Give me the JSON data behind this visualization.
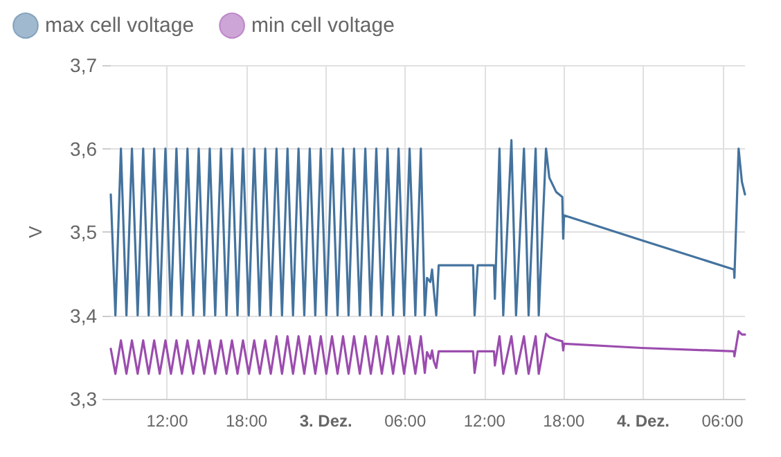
{
  "chart_data": {
    "type": "line",
    "ylabel": "V",
    "legend": "top left",
    "grid": true,
    "marker": "none",
    "line_style": "solid",
    "xlim": [
      "--12-02T07:44",
      "--12-04T07:42"
    ],
    "ylim": [
      3.3,
      3.7
    ],
    "xticks": [
      {
        "value": "--12-02T12:00",
        "label": "12:00"
      },
      {
        "value": "--12-02T18:00",
        "label": "18:00"
      },
      {
        "value": "--12-03T00:00",
        "label": "3. Dez."
      },
      {
        "value": "--12-03T06:00",
        "label": "06:00"
      },
      {
        "value": "--12-03T12:00",
        "label": "12:00"
      },
      {
        "value": "--12-03T18:00",
        "label": "18:00"
      },
      {
        "value": "--12-04T00:00",
        "label": "4. Dez."
      },
      {
        "value": "--12-04T06:00",
        "label": "06:00"
      }
    ],
    "yticks": [
      {
        "value": 3.3,
        "label": "3,3"
      },
      {
        "value": 3.4,
        "label": "3,4"
      },
      {
        "value": 3.5,
        "label": "3,5"
      },
      {
        "value": 3.6,
        "label": "3,6"
      },
      {
        "value": 3.7,
        "label": "3,7"
      }
    ],
    "x": [
      "--12-02T07:44",
      "--12-02T08:05",
      "--12-02T08:30",
      "--12-02T08:55",
      "--12-02T09:20",
      "--12-02T09:46",
      "--12-02T10:11",
      "--12-02T10:36",
      "--12-02T11:01",
      "--12-02T11:26",
      "--12-02T11:52",
      "--12-02T12:17",
      "--12-02T12:42",
      "--12-02T13:07",
      "--12-02T13:32",
      "--12-02T13:58",
      "--12-02T14:23",
      "--12-02T14:48",
      "--12-02T15:13",
      "--12-02T15:38",
      "--12-02T16:04",
      "--12-02T16:29",
      "--12-02T16:54",
      "--12-02T17:19",
      "--12-02T17:44",
      "--12-02T18:10",
      "--12-02T18:35",
      "--12-02T19:00",
      "--12-02T19:25",
      "--12-02T19:50",
      "--12-02T20:16",
      "--12-02T20:41",
      "--12-02T21:06",
      "--12-02T21:31",
      "--12-02T21:56",
      "--12-02T22:22",
      "--12-02T22:47",
      "--12-02T23:12",
      "--12-02T23:37",
      "--12-03T00:02",
      "--12-03T00:28",
      "--12-03T00:53",
      "--12-03T01:18",
      "--12-03T01:43",
      "--12-03T02:08",
      "--12-03T02:34",
      "--12-03T02:59",
      "--12-03T03:24",
      "--12-03T03:49",
      "--12-03T04:14",
      "--12-03T04:40",
      "--12-03T05:05",
      "--12-03T05:30",
      "--12-03T05:55",
      "--12-03T06:20",
      "--12-03T06:46",
      "--12-03T07:11",
      "--12-03T07:29",
      "--12-03T07:39",
      "--12-03T07:54",
      "--12-03T08:02",
      "--12-03T08:10",
      "--12-03T08:21",
      "--12-03T08:32",
      "--12-03T11:08",
      "--12-03T11:15",
      "--12-03T11:29",
      "--12-03T12:43",
      "--12-03T12:47",
      "--12-03T13:08",
      "--12-03T13:25",
      "--12-03T14:02",
      "--12-03T14:23",
      "--12-03T14:59",
      "--12-03T15:20",
      "--12-03T15:52",
      "--12-03T16:06",
      "--12-03T16:39",
      "--12-03T16:54",
      "--12-03T17:25",
      "--12-03T17:53",
      "--12-03T17:57",
      "--12-03T18:01",
      "--12-03T23:53",
      "--12-04T06:52",
      "--12-04T06:54",
      "--12-04T07:13",
      "--12-04T07:28",
      "--12-04T07:42"
    ],
    "series": [
      {
        "name": "max cell voltage",
        "color": "#44739e",
        "values": [
          3.545,
          3.4,
          3.6,
          3.4,
          3.6,
          3.4,
          3.6,
          3.4,
          3.6,
          3.4,
          3.6,
          3.4,
          3.6,
          3.4,
          3.6,
          3.4,
          3.6,
          3.4,
          3.6,
          3.4,
          3.6,
          3.4,
          3.6,
          3.4,
          3.6,
          3.4,
          3.6,
          3.4,
          3.6,
          3.4,
          3.6,
          3.4,
          3.6,
          3.4,
          3.6,
          3.4,
          3.6,
          3.4,
          3.6,
          3.4,
          3.6,
          3.4,
          3.6,
          3.4,
          3.6,
          3.4,
          3.6,
          3.4,
          3.6,
          3.4,
          3.6,
          3.4,
          3.6,
          3.4,
          3.6,
          3.4,
          3.6,
          3.4,
          3.445,
          3.44,
          3.455,
          3.43,
          3.4,
          3.46,
          3.46,
          3.4,
          3.46,
          3.46,
          3.42,
          3.6,
          3.4,
          3.61,
          3.4,
          3.6,
          3.4,
          3.6,
          3.4,
          3.6,
          3.565,
          3.548,
          3.542,
          3.492,
          3.52,
          3.49,
          3.455,
          3.445,
          3.6,
          3.56,
          3.545
        ]
      },
      {
        "name": "min cell voltage",
        "color": "#9b4cae",
        "values": [
          3.36,
          3.33,
          3.37,
          3.33,
          3.37,
          3.33,
          3.37,
          3.33,
          3.37,
          3.33,
          3.37,
          3.33,
          3.37,
          3.33,
          3.37,
          3.33,
          3.37,
          3.33,
          3.37,
          3.33,
          3.37,
          3.33,
          3.37,
          3.33,
          3.37,
          3.33,
          3.37,
          3.33,
          3.37,
          3.33,
          3.375,
          3.33,
          3.375,
          3.33,
          3.375,
          3.33,
          3.375,
          3.33,
          3.375,
          3.33,
          3.375,
          3.33,
          3.375,
          3.33,
          3.375,
          3.33,
          3.375,
          3.33,
          3.375,
          3.33,
          3.375,
          3.33,
          3.375,
          3.33,
          3.375,
          3.33,
          3.375,
          3.331,
          3.356,
          3.348,
          3.358,
          3.345,
          3.337,
          3.357,
          3.357,
          3.331,
          3.357,
          3.357,
          3.34,
          3.375,
          3.33,
          3.375,
          3.33,
          3.375,
          3.33,
          3.375,
          3.33,
          3.378,
          3.374,
          3.371,
          3.369,
          3.358,
          3.366,
          3.361,
          3.357,
          3.351,
          3.381,
          3.377,
          3.377
        ]
      }
    ]
  }
}
